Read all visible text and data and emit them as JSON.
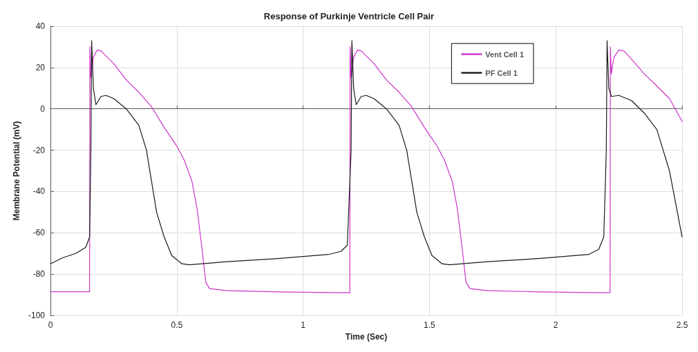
{
  "chart_data": {
    "type": "line",
    "title": "Response of Purkinje Ventricle Cell Pair",
    "xlabel": "Time (Sec)",
    "ylabel": "Membrane Potential (mV)",
    "xlim": [
      0,
      2.5
    ],
    "xticks": [
      0,
      0.5,
      1,
      1.5,
      2,
      2.5
    ],
    "ylim": [
      -100,
      40
    ],
    "yticks": [
      -100,
      -80,
      -60,
      -40,
      -20,
      0,
      20,
      40
    ],
    "grid": true,
    "legend": "top right",
    "marker": "none",
    "line_style": "solid",
    "series": [
      {
        "name": "Vent Cell 1",
        "color": "#cc33cc",
        "x": [
          0,
          0.155,
          0.156,
          0.16,
          0.17,
          0.185,
          0.2,
          0.25,
          0.3,
          0.35,
          0.4,
          0.45,
          0.5,
          0.53,
          0.56,
          0.58,
          0.6,
          0.615,
          0.63,
          0.7,
          0.9,
          1.1,
          1.185,
          1.186,
          1.19,
          1.2,
          1.215,
          1.23,
          1.28,
          1.33,
          1.38,
          1.43,
          1.48,
          1.53,
          1.56,
          1.59,
          1.61,
          1.63,
          1.645,
          1.66,
          1.73,
          1.93,
          2.13,
          2.215,
          2.216,
          2.22,
          2.23,
          2.25,
          2.27,
          2.3,
          2.35,
          2.4,
          2.45,
          2.5
        ],
        "values": [
          -88.5,
          -88.5,
          30,
          15,
          25,
          28.5,
          28,
          22,
          14,
          8,
          1,
          -9,
          -18,
          -25,
          -35,
          -48,
          -68,
          -84,
          -87,
          -88,
          -88.6,
          -88.9,
          -89,
          30,
          15,
          25,
          28.5,
          28,
          22,
          14,
          8,
          1,
          -9,
          -18,
          -25,
          -35,
          -48,
          -68,
          -84,
          -87,
          -88,
          -88.6,
          -88.9,
          -89,
          30,
          17,
          25,
          28.5,
          28,
          24,
          17,
          11,
          5,
          -6
        ]
      },
      {
        "name": "PF Cell 1",
        "color": "#1a1a1a",
        "x": [
          0,
          0.05,
          0.1,
          0.14,
          0.155,
          0.16,
          0.163,
          0.17,
          0.18,
          0.2,
          0.22,
          0.25,
          0.3,
          0.35,
          0.38,
          0.4,
          0.42,
          0.45,
          0.48,
          0.52,
          0.55,
          0.7,
          0.9,
          1.1,
          1.15,
          1.175,
          1.19,
          1.193,
          1.2,
          1.21,
          1.23,
          1.25,
          1.28,
          1.33,
          1.38,
          1.41,
          1.43,
          1.45,
          1.48,
          1.51,
          1.55,
          1.58,
          1.73,
          1.93,
          2.13,
          2.17,
          2.19,
          2.2,
          2.203,
          2.21,
          2.22,
          2.25,
          2.3,
          2.35,
          2.4,
          2.45,
          2.5
        ],
        "values": [
          -75,
          -72,
          -70,
          -67,
          -62,
          -20,
          33,
          10,
          2,
          6,
          6.5,
          5,
          0,
          -8,
          -20,
          -35,
          -50,
          -62,
          -71,
          -75,
          -75.5,
          -74,
          -72.5,
          -70.5,
          -69,
          -66,
          -20,
          33,
          10,
          2,
          6,
          6.5,
          5,
          0,
          -8,
          -20,
          -35,
          -50,
          -62,
          -71,
          -75,
          -75.5,
          -74,
          -72.5,
          -70.5,
          -68,
          -62,
          -20,
          33,
          10,
          6,
          6.5,
          4,
          -2,
          -10,
          -30,
          -62
        ]
      }
    ]
  }
}
